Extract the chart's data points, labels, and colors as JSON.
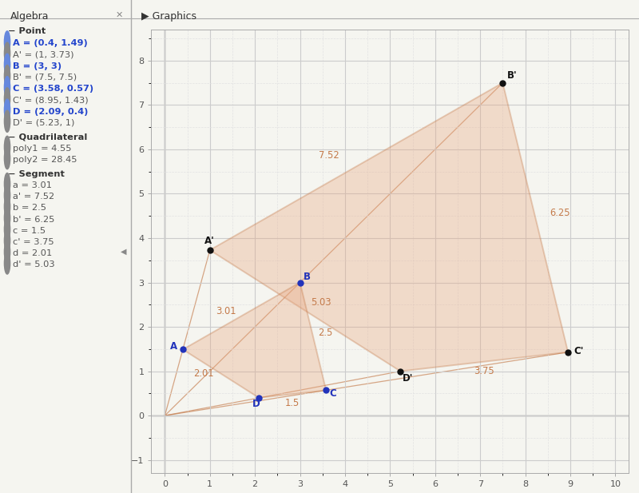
{
  "points_original": {
    "A": [
      0.4,
      1.49
    ],
    "B": [
      3,
      3
    ],
    "C": [
      3.58,
      0.57
    ],
    "D": [
      2.09,
      0.4
    ]
  },
  "points_dilated": {
    "A_prime": [
      1,
      3.73
    ],
    "B_prime": [
      7.5,
      7.5
    ],
    "C_prime": [
      8.95,
      1.43
    ],
    "D_prime": [
      5.23,
      1
    ]
  },
  "segment_labels_original": {
    "a": "3.01",
    "b": "2.5",
    "c": "1.5",
    "d": "2.01"
  },
  "segment_labels_dilated": {
    "a_prime": "7.52",
    "b_prime": "6.25",
    "c_prime": "3.75",
    "d_prime": "5.03"
  },
  "poly_color": "#e8a882",
  "poly_alpha": 0.35,
  "edge_color": "#c47a4a",
  "point_color_original": "#2233bb",
  "point_color_dilated": "#111111",
  "label_color_original": "#2233bb",
  "label_color_dilated": "#111111",
  "segment_label_color": "#c47a4a",
  "xlim": [
    -0.3,
    10.3
  ],
  "ylim": [
    -1.3,
    8.7
  ],
  "xticks": [
    0,
    1,
    2,
    3,
    4,
    5,
    6,
    7,
    8,
    9,
    10
  ],
  "yticks": [
    -1,
    0,
    1,
    2,
    3,
    4,
    5,
    6,
    7,
    8
  ],
  "grid_major_color": "#cccccc",
  "grid_minor_color": "#e2e2e2",
  "bg_color": "#f5f5f0",
  "left_panel_color": "#ebebeb"
}
